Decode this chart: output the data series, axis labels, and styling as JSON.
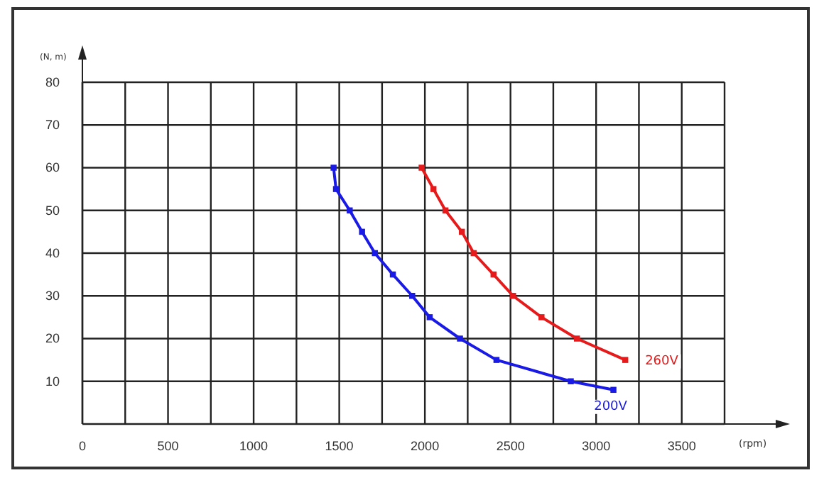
{
  "chart_data": {
    "type": "line",
    "ylabel": "(N, m)",
    "xlabel": "(rpm)",
    "xlim": [
      0,
      3750
    ],
    "ylim": [
      0,
      80
    ],
    "xticks": [
      {
        "value": 0,
        "label": "0"
      },
      {
        "value": 250,
        "label": null
      },
      500,
      {
        "value": 750,
        "label": null
      },
      1000,
      {
        "value": 1250,
        "label": null
      },
      1500,
      {
        "value": 1750,
        "label": null
      },
      2000,
      {
        "value": 2250,
        "label": null
      },
      2500,
      {
        "value": 2750,
        "label": null
      },
      3000,
      {
        "value": 3250,
        "label": null
      },
      3500,
      {
        "value": 3750,
        "label": null
      }
    ],
    "yticks": [
      10,
      20,
      30,
      40,
      50,
      60,
      70,
      80
    ],
    "grid": true,
    "marker": "square",
    "line_style": "solid",
    "series": [
      {
        "name": "200V",
        "color": "#1a1ae6",
        "x": [
          1467,
          1481,
          1561,
          1633,
          1708,
          1813,
          1926,
          2028,
          2205,
          2418,
          2852,
          3101
        ],
        "values": [
          60,
          55,
          50,
          45,
          40,
          35,
          30,
          25,
          20,
          15,
          10,
          8
        ]
      },
      {
        "name": "260V",
        "color": "#e61a1a",
        "x": [
          1981,
          2050,
          2120,
          2216,
          2285,
          2401,
          2515,
          2681,
          2888,
          3170
        ],
        "values": [
          60,
          55,
          50,
          45,
          40,
          35,
          30,
          25,
          20,
          15
        ]
      }
    ]
  }
}
